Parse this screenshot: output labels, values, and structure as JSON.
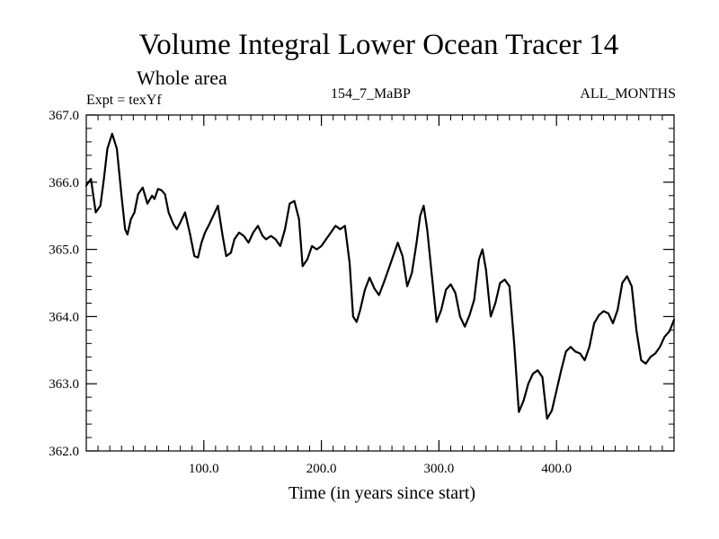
{
  "header": {
    "title": "Volume Integral Lower Ocean Tracer 14",
    "subtitle": "Whole area",
    "expt_label": "Expt = texYf",
    "run_label": "154_7_MaBP",
    "months_label": "ALL_MONTHS"
  },
  "chart_data": {
    "type": "line",
    "title": "Volume Integral Lower Ocean Tracer 14",
    "subtitle": "Whole area",
    "xlabel": "Time (in years since start)",
    "ylabel": "",
    "xlim": [
      0,
      500
    ],
    "ylim": [
      362.0,
      367.0
    ],
    "grid": false,
    "legend": "none",
    "x_ticks": [
      100,
      200,
      300,
      400
    ],
    "x_tick_labels": [
      "100.0",
      "200.0",
      "300.0",
      "400.0"
    ],
    "y_ticks": [
      362,
      363,
      364,
      365,
      366,
      367
    ],
    "y_tick_labels": [
      "362.0",
      "363.0",
      "364.0",
      "365.0",
      "366.0",
      "367.0"
    ],
    "line_color": "#000000",
    "series": [
      {
        "x": [
          0,
          4,
          8,
          12,
          15,
          18,
          22,
          26,
          30,
          33,
          35,
          38,
          41,
          44,
          48,
          52,
          56,
          58,
          61,
          64,
          67,
          70,
          74,
          77,
          80,
          84,
          88,
          92,
          95,
          98,
          101,
          104,
          108,
          112,
          116,
          119,
          123,
          126,
          130,
          134,
          138,
          142,
          146,
          150,
          153,
          157,
          161,
          165,
          169,
          173,
          177,
          181,
          184,
          188,
          192,
          196,
          200,
          204,
          208,
          212,
          216,
          220,
          224,
          227,
          230,
          233,
          237,
          241,
          245,
          249,
          253,
          257,
          261,
          265,
          269,
          273,
          277,
          281,
          284,
          287,
          290,
          294,
          298,
          302,
          306,
          310,
          314,
          318,
          322,
          326,
          330,
          334,
          337,
          340,
          344,
          348,
          352,
          356,
          360,
          364,
          368,
          372,
          376,
          380,
          384,
          388,
          392,
          396,
          400,
          404,
          408,
          412,
          416,
          420,
          424,
          428,
          432,
          436,
          440,
          444,
          448,
          452,
          456,
          460,
          464,
          468,
          472,
          476,
          480,
          484,
          488,
          492,
          496,
          500
        ],
        "y": [
          365.95,
          366.05,
          365.55,
          365.65,
          366.05,
          366.5,
          366.72,
          366.5,
          365.8,
          365.3,
          365.22,
          365.45,
          365.55,
          365.82,
          365.92,
          365.68,
          365.8,
          365.75,
          365.9,
          365.88,
          365.82,
          365.55,
          365.38,
          365.3,
          365.4,
          365.55,
          365.25,
          364.9,
          364.88,
          365.1,
          365.25,
          365.35,
          365.5,
          365.65,
          365.2,
          364.9,
          364.95,
          365.15,
          365.25,
          365.2,
          365.1,
          365.25,
          365.35,
          365.2,
          365.15,
          365.2,
          365.15,
          365.05,
          365.3,
          365.68,
          365.72,
          365.45,
          364.75,
          364.85,
          365.05,
          365.0,
          365.05,
          365.15,
          365.25,
          365.35,
          365.3,
          365.35,
          364.8,
          364.0,
          363.92,
          364.1,
          364.4,
          364.58,
          364.42,
          364.32,
          364.5,
          364.7,
          364.9,
          365.1,
          364.9,
          364.45,
          364.65,
          365.1,
          365.5,
          365.65,
          365.3,
          364.6,
          363.92,
          364.1,
          364.4,
          364.48,
          364.35,
          364.0,
          363.85,
          364.02,
          364.25,
          364.85,
          365.0,
          364.7,
          364.0,
          364.2,
          364.5,
          364.55,
          364.45,
          363.6,
          362.58,
          362.75,
          363.0,
          363.15,
          363.2,
          363.1,
          362.48,
          362.6,
          362.9,
          363.2,
          363.48,
          363.55,
          363.48,
          363.45,
          363.35,
          363.55,
          363.9,
          364.02,
          364.08,
          364.05,
          363.9,
          364.1,
          364.5,
          364.6,
          364.45,
          363.8,
          363.35,
          363.3,
          363.4,
          363.45,
          363.55,
          363.7,
          363.78,
          363.95
        ]
      }
    ]
  }
}
